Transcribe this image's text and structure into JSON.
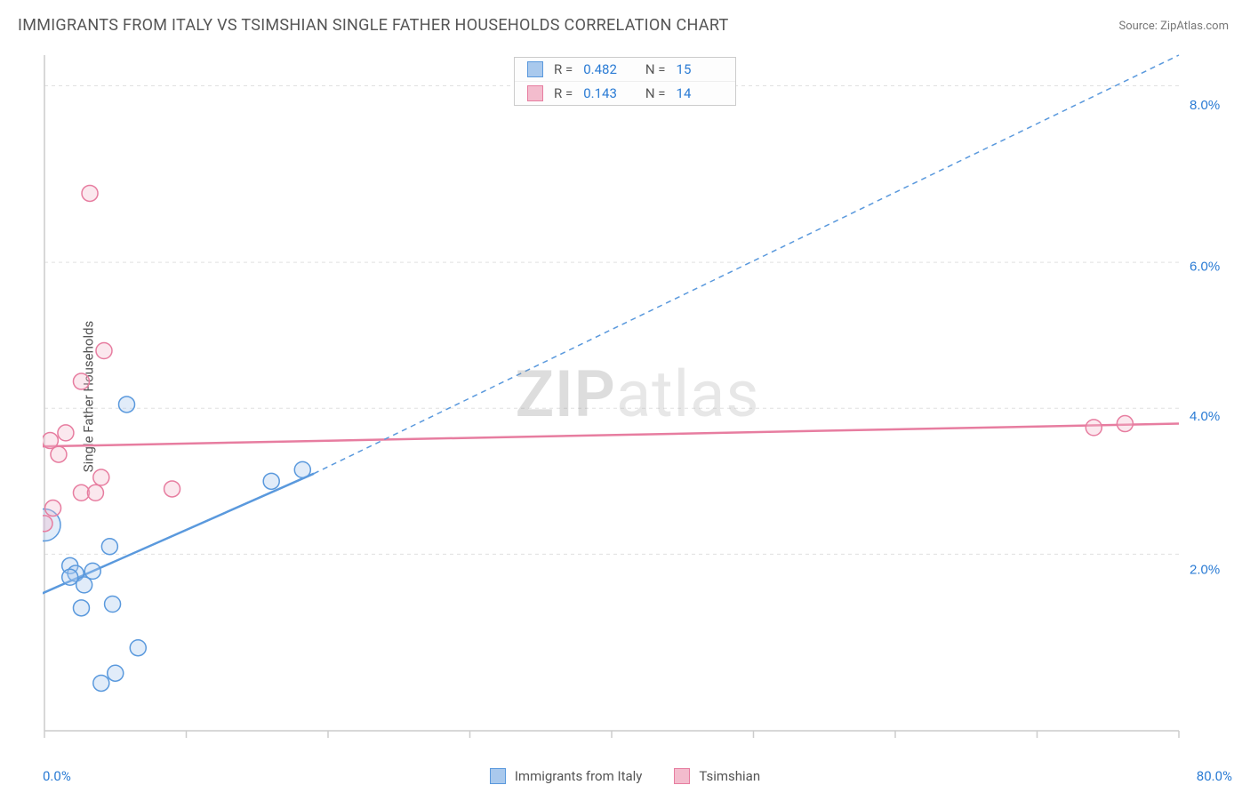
{
  "title": "IMMIGRANTS FROM ITALY VS TSIMSHIAN SINGLE FATHER HOUSEHOLDS CORRELATION CHART",
  "source": "Source: ZipAtlas.com",
  "yaxis_label": "Single Father Households",
  "watermark": "ZIPatlas",
  "chart": {
    "type": "scatter",
    "background": "#ffffff",
    "grid_color": "#e0e0e0",
    "grid_dash": "4,4",
    "axis_color": "#cccccc",
    "tick_color": "#cccccc",
    "xlim": [
      0,
      80
    ],
    "ylim": [
      0,
      8.8
    ],
    "xticks": [
      0,
      10,
      20,
      30,
      40,
      50,
      60,
      70,
      80
    ],
    "yticks_grid": [
      2.3,
      4.2,
      6.1,
      8.4
    ],
    "ytick_labels": [
      {
        "y": 2.1,
        "text": "2.0%"
      },
      {
        "y": 4.1,
        "text": "4.0%"
      },
      {
        "y": 6.05,
        "text": "6.0%"
      },
      {
        "y": 8.15,
        "text": "8.0%"
      }
    ],
    "ytick_label_color": "#2a7bd4",
    "xaxis_min_label": "0.0%",
    "xaxis_max_label": "80.0%",
    "marker_radius": 9,
    "marker_stroke_width": 1.5,
    "marker_fill_opacity": 0.35,
    "series": [
      {
        "name": "Immigrants from Italy",
        "color_stroke": "#5a99dd",
        "color_fill": "#a9c9ed",
        "trend": {
          "type": "solid_then_dashed",
          "x1": -1,
          "y1": 1.72,
          "x2": 19,
          "y2": 3.35,
          "x3": 80,
          "y3": 8.8,
          "width": 2.5,
          "dash": "6,5"
        },
        "points": [
          {
            "x": 0.0,
            "y": 2.68,
            "r": 18
          },
          {
            "x": 1.8,
            "y": 2.15
          },
          {
            "x": 2.2,
            "y": 2.05
          },
          {
            "x": 1.8,
            "y": 2.0
          },
          {
            "x": 3.4,
            "y": 2.08
          },
          {
            "x": 2.8,
            "y": 1.9
          },
          {
            "x": 4.6,
            "y": 2.4
          },
          {
            "x": 2.6,
            "y": 1.6
          },
          {
            "x": 4.8,
            "y": 1.65
          },
          {
            "x": 5.0,
            "y": 0.75
          },
          {
            "x": 4.0,
            "y": 0.62
          },
          {
            "x": 5.8,
            "y": 4.25
          },
          {
            "x": 6.6,
            "y": 1.08
          },
          {
            "x": 16.0,
            "y": 3.25
          },
          {
            "x": 18.2,
            "y": 3.4
          }
        ]
      },
      {
        "name": "Tsimshian",
        "color_stroke": "#e77da0",
        "color_fill": "#f3bccd",
        "trend": {
          "type": "solid",
          "x1": -1,
          "y1": 3.7,
          "x2": 80,
          "y2": 4.0,
          "width": 2.5
        },
        "points": [
          {
            "x": 0.0,
            "y": 2.7
          },
          {
            "x": 0.6,
            "y": 2.9
          },
          {
            "x": 0.4,
            "y": 3.78
          },
          {
            "x": 1.0,
            "y": 3.6
          },
          {
            "x": 1.5,
            "y": 3.88
          },
          {
            "x": 2.6,
            "y": 3.1
          },
          {
            "x": 3.6,
            "y": 3.1
          },
          {
            "x": 4.0,
            "y": 3.3
          },
          {
            "x": 2.6,
            "y": 4.55
          },
          {
            "x": 4.2,
            "y": 4.95
          },
          {
            "x": 3.2,
            "y": 7.0
          },
          {
            "x": 9.0,
            "y": 3.15
          },
          {
            "x": 74.0,
            "y": 3.95
          },
          {
            "x": 76.2,
            "y": 4.0
          }
        ]
      }
    ]
  },
  "legend_top": {
    "rows": [
      {
        "swatch_fill": "#a9c9ed",
        "swatch_stroke": "#5a99dd",
        "r_label": "R =",
        "r_value": "0.482",
        "n_label": "N =",
        "n_value": "15"
      },
      {
        "swatch_fill": "#f3bccd",
        "swatch_stroke": "#e77da0",
        "r_label": "R =",
        "r_value": "0.143",
        "n_label": "N =",
        "n_value": "14"
      }
    ]
  },
  "legend_bottom": {
    "items": [
      {
        "swatch_fill": "#a9c9ed",
        "swatch_stroke": "#5a99dd",
        "label": "Immigrants from Italy"
      },
      {
        "swatch_fill": "#f3bccd",
        "swatch_stroke": "#e77da0",
        "label": "Tsimshian"
      }
    ]
  }
}
